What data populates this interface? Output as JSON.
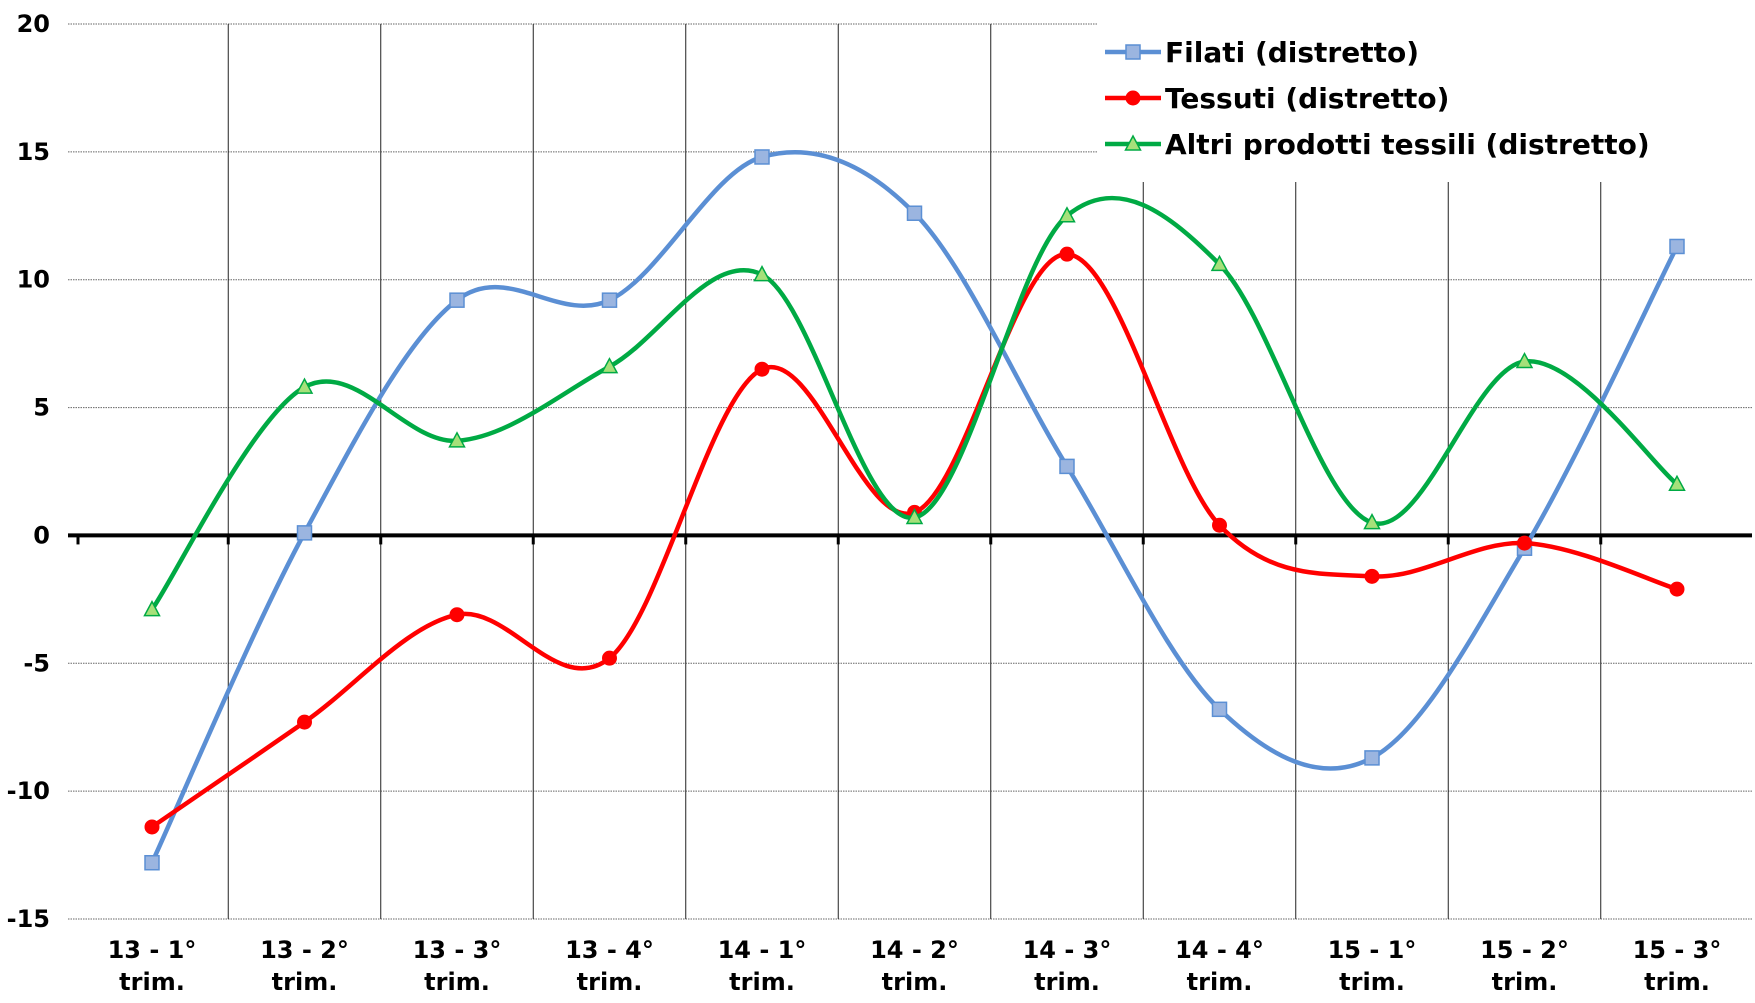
{
  "chart_data": {
    "type": "line",
    "title": "",
    "xlabel": "",
    "ylabel": "",
    "ylim": [
      -15,
      20
    ],
    "yticks": [
      -15,
      -10,
      -5,
      0,
      5,
      10,
      15,
      20
    ],
    "grid": true,
    "smooth": true,
    "legend_position": "top-right",
    "categories": [
      [
        "13 - 1°",
        "trim."
      ],
      [
        "13 - 2°",
        "trim."
      ],
      [
        "13 - 3°",
        "trim."
      ],
      [
        "13 - 4°",
        "trim."
      ],
      [
        "14 - 1°",
        "trim."
      ],
      [
        "14 - 2°",
        "trim."
      ],
      [
        "14 - 3°",
        "trim."
      ],
      [
        "14 - 4°",
        "trim."
      ],
      [
        "15 - 1°",
        "trim."
      ],
      [
        "15 - 2°",
        "trim."
      ],
      [
        "15 - 3°",
        "trim."
      ]
    ],
    "series": [
      {
        "name": "Filati (distretto)",
        "color": "#5b8fd4",
        "marker": "square",
        "marker_fill": "#9bb5e0",
        "values": [
          -12.8,
          0.1,
          9.2,
          9.2,
          14.8,
          12.6,
          2.7,
          -6.8,
          -8.7,
          -0.5,
          11.3
        ]
      },
      {
        "name": "Tessuti (distretto)",
        "color": "#ff0000",
        "marker": "circle",
        "marker_fill": "#ff0000",
        "values": [
          -11.4,
          -7.3,
          -3.1,
          -4.8,
          6.5,
          0.9,
          11.0,
          0.4,
          -1.6,
          -0.3,
          -2.1
        ]
      },
      {
        "name": "Altri prodotti tessili (distretto)",
        "color": "#00aa44",
        "marker": "triangle",
        "marker_fill": "#a6e07a",
        "values": [
          -2.9,
          5.8,
          3.7,
          6.6,
          10.2,
          0.7,
          12.5,
          10.6,
          0.5,
          6.8,
          2.0
        ]
      }
    ]
  }
}
